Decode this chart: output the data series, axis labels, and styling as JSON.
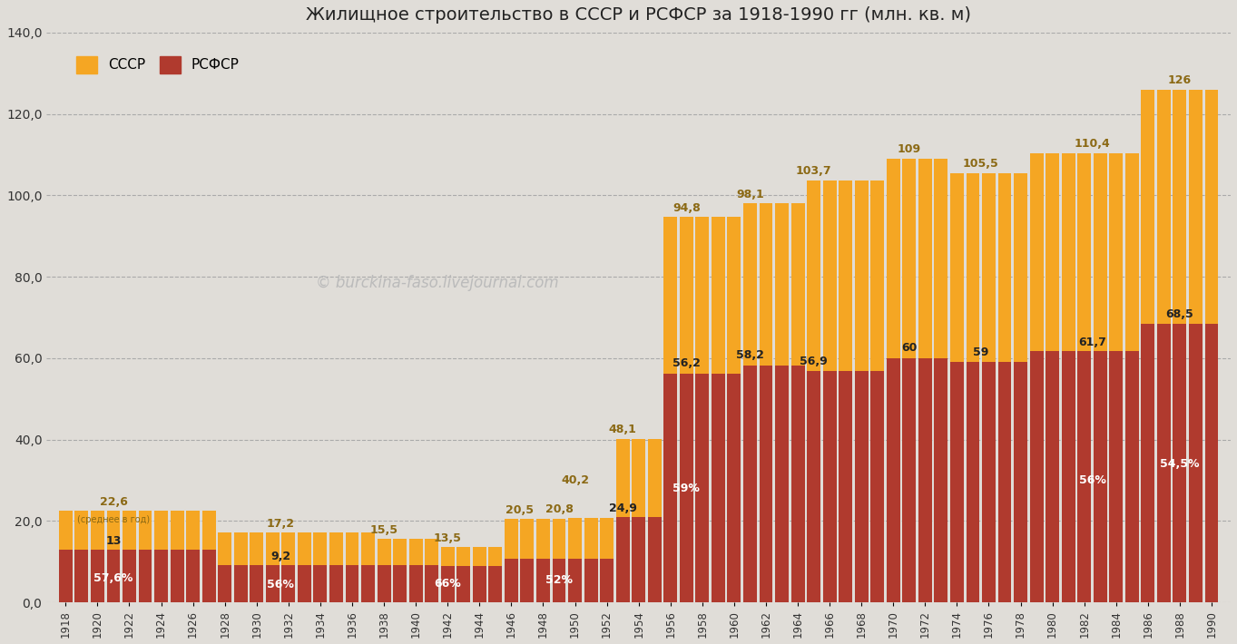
{
  "title": "Жилищное строительство в СССР и РСФСР за 1918-1990 гг (млн. кв. м)",
  "legend_ussr": "СССР",
  "legend_rsfsr": "РСФСР",
  "watermark": "© burckina-faso.livejournal.com",
  "background_color": "#e0ddd8",
  "color_ussr": "#f5a623",
  "color_rsfsr": "#b03a2e",
  "years": [
    1918,
    1919,
    1920,
    1921,
    1922,
    1923,
    1924,
    1925,
    1926,
    1927,
    1928,
    1929,
    1930,
    1931,
    1932,
    1933,
    1934,
    1935,
    1936,
    1937,
    1938,
    1939,
    1940,
    1941,
    1942,
    1943,
    1944,
    1945,
    1946,
    1947,
    1948,
    1949,
    1950,
    1951,
    1952,
    1953,
    1954,
    1955,
    1956,
    1957,
    1958,
    1959,
    1960,
    1961,
    1962,
    1963,
    1964,
    1965,
    1966,
    1967,
    1968,
    1969,
    1970,
    1971,
    1972,
    1973,
    1974,
    1975,
    1976,
    1977,
    1978,
    1979,
    1980,
    1981,
    1982,
    1983,
    1984,
    1985,
    1986,
    1987,
    1988,
    1989,
    1990
  ],
  "ussr_values": [
    22.6,
    22.6,
    22.6,
    22.6,
    22.6,
    22.6,
    22.6,
    22.6,
    22.6,
    22.6,
    17.2,
    17.2,
    17.2,
    17.2,
    17.2,
    17.2,
    17.2,
    17.2,
    17.2,
    17.2,
    15.5,
    15.5,
    15.5,
    15.5,
    13.5,
    13.5,
    13.5,
    13.5,
    20.5,
    20.5,
    20.5,
    20.5,
    20.8,
    20.8,
    20.8,
    40.2,
    40.2,
    40.2,
    94.8,
    94.8,
    94.8,
    94.8,
    94.8,
    98.1,
    98.1,
    98.1,
    98.1,
    103.7,
    103.7,
    103.7,
    103.7,
    103.7,
    109.0,
    109.0,
    109.0,
    109.0,
    105.5,
    105.5,
    105.5,
    105.5,
    105.5,
    110.4,
    110.4,
    110.4,
    110.4,
    110.4,
    110.4,
    110.4,
    126.0,
    126.0,
    126.0,
    126.0,
    126.0
  ],
  "rsfsr_values": [
    13.0,
    13.0,
    13.0,
    13.0,
    13.0,
    13.0,
    13.0,
    13.0,
    13.0,
    13.0,
    9.2,
    9.2,
    9.2,
    9.2,
    9.2,
    9.2,
    9.2,
    9.2,
    9.2,
    9.2,
    9.2,
    9.2,
    9.2,
    9.2,
    9.0,
    9.0,
    9.0,
    9.0,
    10.7,
    10.7,
    10.7,
    10.7,
    10.8,
    10.8,
    10.8,
    20.9,
    20.9,
    20.9,
    56.2,
    56.2,
    56.2,
    56.2,
    56.2,
    58.2,
    58.2,
    58.2,
    58.2,
    56.9,
    56.9,
    56.9,
    56.9,
    56.9,
    60.0,
    60.0,
    60.0,
    60.0,
    59.0,
    59.0,
    59.0,
    59.0,
    59.0,
    61.7,
    61.7,
    61.7,
    61.7,
    61.7,
    61.7,
    61.7,
    68.5,
    68.5,
    68.5,
    68.5,
    68.5
  ],
  "ylim": [
    0,
    140
  ],
  "yticks": [
    0,
    20,
    40,
    60,
    80,
    100,
    120,
    140
  ],
  "ytick_labels": [
    "0,0",
    "20,0",
    "40,0",
    "60,0",
    "80,0",
    "100,0",
    "120,0",
    "140,0"
  ]
}
